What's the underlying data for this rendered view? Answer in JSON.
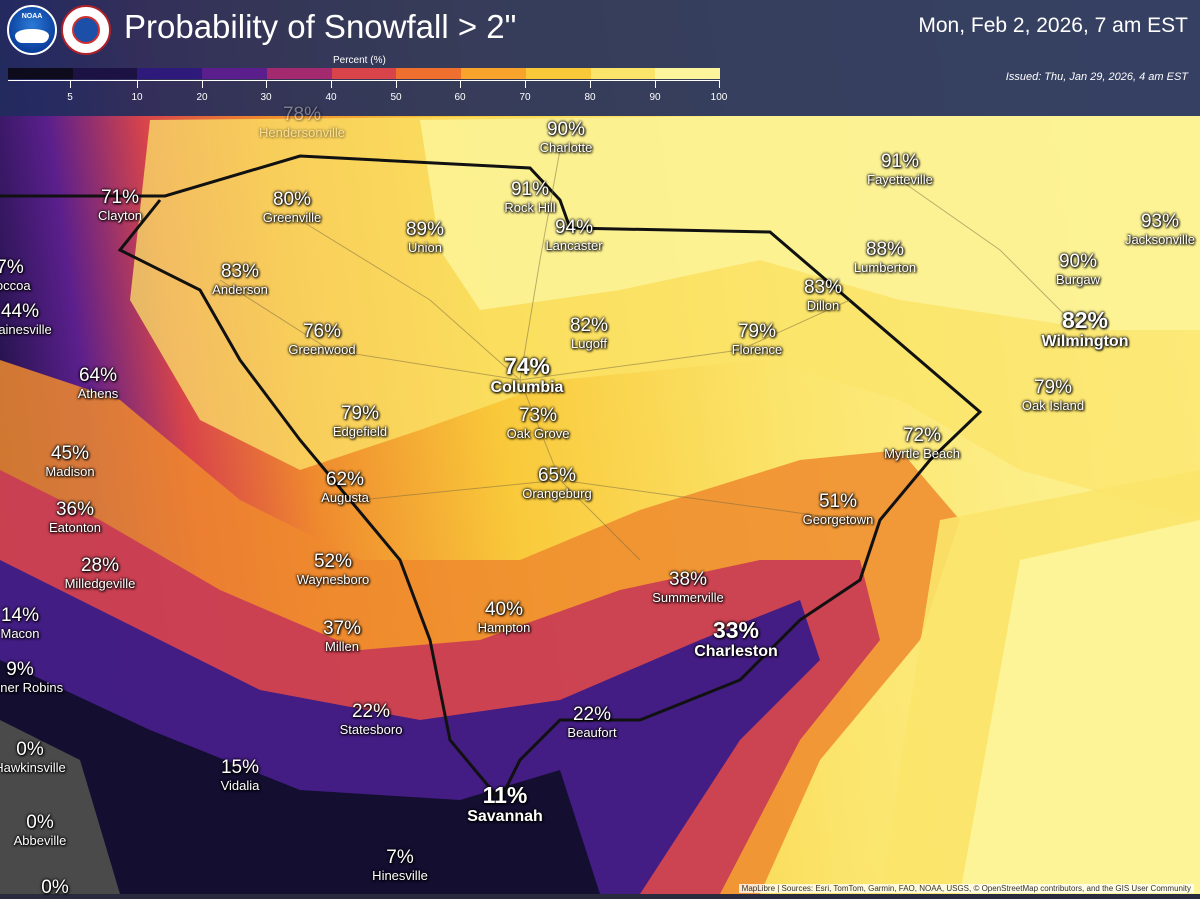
{
  "header": {
    "title": "Probability of Snowfall > 2\"",
    "valid_time": "Mon, Feb 2, 2026, 7 am EST",
    "issued": "Issued: Thu, Jan 29, 2026, 4 am EST",
    "logos": [
      "noaa-logo",
      "nws-logo"
    ],
    "logo_text": "NOAA"
  },
  "legend": {
    "title": "Percent (%)",
    "ticks": [
      "5",
      "10",
      "20",
      "30",
      "40",
      "50",
      "60",
      "70",
      "80",
      "90",
      "100"
    ],
    "colors": [
      "#0e0b1c",
      "#1d1244",
      "#2e1a7a",
      "#5a1f8c",
      "#a32a6e",
      "#d8444a",
      "#ef6f2e",
      "#f7a32c",
      "#f9c93a",
      "#fbe46a",
      "#fdf59c"
    ]
  },
  "cities": [
    {
      "pct": "78%",
      "name": "Hendersonville"
    },
    {
      "pct": "90%",
      "name": "Charlotte"
    },
    {
      "pct": "91%",
      "name": "Fayetteville"
    },
    {
      "pct": "71%",
      "name": "Clayton"
    },
    {
      "pct": "80%",
      "name": "Greenville"
    },
    {
      "pct": "91%",
      "name": "Rock Hill"
    },
    {
      "pct": "94%",
      "name": "Lancaster"
    },
    {
      "pct": "89%",
      "name": "Union"
    },
    {
      "pct": "93%",
      "name": "Jacksonville"
    },
    {
      "pct": "88%",
      "name": "Lumberton"
    },
    {
      "pct": "90%",
      "name": "Burgaw"
    },
    {
      "pct": "7%",
      "name": "Toccoa"
    },
    {
      "pct": "83%",
      "name": "Anderson"
    },
    {
      "pct": "83%",
      "name": "Dillon"
    },
    {
      "pct": "44%",
      "name": "Gainesville"
    },
    {
      "pct": "82%",
      "name": "Lugoff"
    },
    {
      "pct": "79%",
      "name": "Florence"
    },
    {
      "pct": "82%",
      "name": "Wilmington"
    },
    {
      "pct": "76%",
      "name": "Greenwood"
    },
    {
      "pct": "74%",
      "name": "Columbia"
    },
    {
      "pct": "64%",
      "name": "Athens"
    },
    {
      "pct": "79%",
      "name": "Oak Island"
    },
    {
      "pct": "79%",
      "name": "Edgefield"
    },
    {
      "pct": "73%",
      "name": "Oak Grove"
    },
    {
      "pct": "72%",
      "name": "Myrtle Beach"
    },
    {
      "pct": "45%",
      "name": "Madison"
    },
    {
      "pct": "62%",
      "name": "Augusta"
    },
    {
      "pct": "65%",
      "name": "Orangeburg"
    },
    {
      "pct": "51%",
      "name": "Georgetown"
    },
    {
      "pct": "36%",
      "name": "Eatonton"
    },
    {
      "pct": "28%",
      "name": "Milledgeville"
    },
    {
      "pct": "52%",
      "name": "Waynesboro"
    },
    {
      "pct": "38%",
      "name": "Summerville"
    },
    {
      "pct": "40%",
      "name": "Hampton"
    },
    {
      "pct": "14%",
      "name": "Macon"
    },
    {
      "pct": "37%",
      "name": "Millen"
    },
    {
      "pct": "33%",
      "name": "Charleston"
    },
    {
      "pct": "9%",
      "name": "Warner Robins"
    },
    {
      "pct": "22%",
      "name": "Statesboro"
    },
    {
      "pct": "22%",
      "name": "Beaufort"
    },
    {
      "pct": "0%",
      "name": "Hawkinsville"
    },
    {
      "pct": "15%",
      "name": "Vidalia"
    },
    {
      "pct": "11%",
      "name": "Savannah"
    },
    {
      "pct": "0%",
      "name": "Abbeville"
    },
    {
      "pct": "7%",
      "name": "Hinesville"
    },
    {
      "pct": "0%",
      "name": ""
    }
  ],
  "attribution": "MapLibre | Sources: Esri, TomTom, Garmin, FAO, NOAA, USGS, © OpenStreetMap contributors, and the GIS User Community"
}
